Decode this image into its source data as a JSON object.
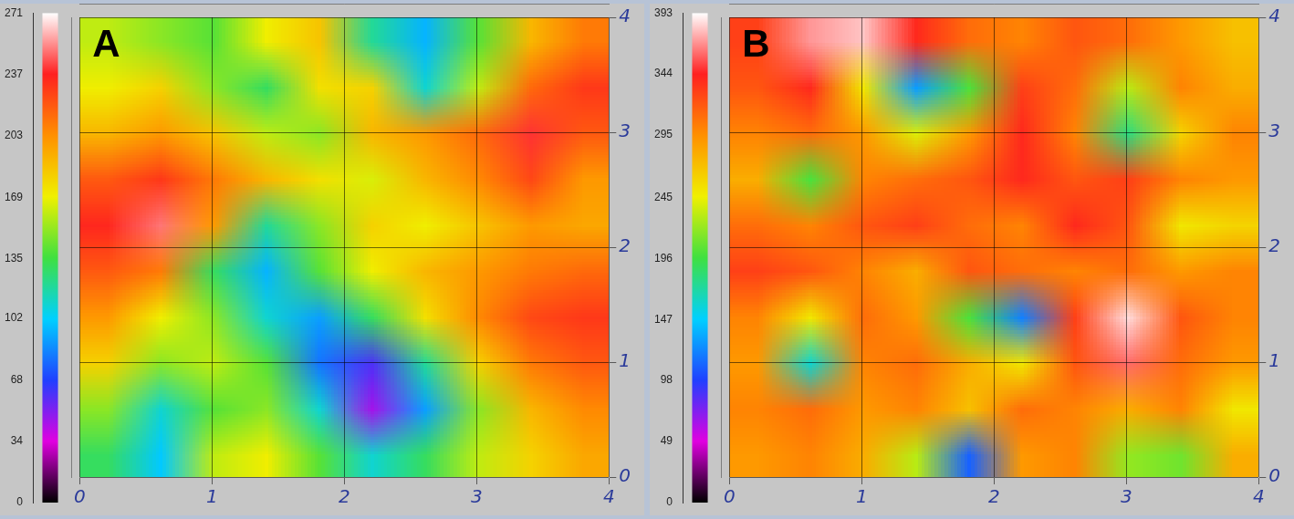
{
  "chart_data": [
    {
      "type": "heatmap",
      "title": "A",
      "xlim": [
        0,
        4
      ],
      "xticks": [
        0,
        1,
        2,
        3,
        4
      ],
      "ylim": [
        0,
        4
      ],
      "yticks": [
        0,
        1,
        2,
        3,
        4
      ],
      "grid": true,
      "colorbar": {
        "range": [
          0,
          271
        ],
        "ticks": [
          0,
          34,
          68,
          102,
          135,
          169,
          203,
          237,
          271
        ]
      },
      "cells": [
        [
          160,
          150,
          140,
          170,
          185,
          120,
          95,
          140,
          190,
          210
        ],
        [
          170,
          180,
          150,
          130,
          175,
          180,
          110,
          160,
          215,
          230
        ],
        [
          190,
          200,
          185,
          160,
          150,
          190,
          200,
          215,
          240,
          220
        ],
        [
          220,
          230,
          210,
          190,
          175,
          165,
          190,
          205,
          225,
          200
        ],
        [
          235,
          250,
          200,
          120,
          150,
          180,
          170,
          185,
          200,
          195
        ],
        [
          220,
          210,
          130,
          95,
          140,
          170,
          190,
          200,
          210,
          215
        ],
        [
          200,
          170,
          150,
          110,
          90,
          130,
          175,
          205,
          225,
          230
        ],
        [
          180,
          150,
          160,
          140,
          80,
          60,
          120,
          180,
          210,
          220
        ],
        [
          150,
          110,
          140,
          150,
          110,
          45,
          90,
          150,
          190,
          205
        ],
        [
          130,
          100,
          160,
          170,
          140,
          110,
          130,
          160,
          180,
          195
        ]
      ]
    },
    {
      "type": "heatmap",
      "title": "B",
      "xlim": [
        0,
        4
      ],
      "xticks": [
        0,
        1,
        2,
        3,
        4
      ],
      "ylim": [
        0,
        4
      ],
      "yticks": [
        0,
        1,
        2,
        3,
        4
      ],
      "grid": true,
      "colorbar": {
        "range": [
          0,
          393
        ],
        "ticks": [
          0,
          49,
          98,
          147,
          196,
          245,
          295,
          344,
          393
        ]
      },
      "cells": [
        [
          330,
          370,
          380,
          340,
          310,
          300,
          320,
          310,
          290,
          270
        ],
        [
          320,
          340,
          250,
          130,
          200,
          330,
          310,
          230,
          300,
          280
        ],
        [
          300,
          310,
          290,
          240,
          290,
          340,
          300,
          180,
          260,
          300
        ],
        [
          280,
          200,
          300,
          310,
          320,
          340,
          320,
          330,
          300,
          290
        ],
        [
          310,
          300,
          320,
          330,
          310,
          300,
          340,
          320,
          250,
          260
        ],
        [
          330,
          320,
          300,
          280,
          320,
          310,
          300,
          310,
          290,
          300
        ],
        [
          300,
          250,
          310,
          290,
          200,
          120,
          330,
          385,
          320,
          300
        ],
        [
          290,
          160,
          300,
          310,
          280,
          250,
          320,
          360,
          310,
          290
        ],
        [
          300,
          310,
          290,
          300,
          270,
          310,
          300,
          280,
          300,
          250
        ],
        [
          290,
          300,
          280,
          230,
          110,
          290,
          300,
          220,
          210,
          280
        ]
      ]
    }
  ]
}
